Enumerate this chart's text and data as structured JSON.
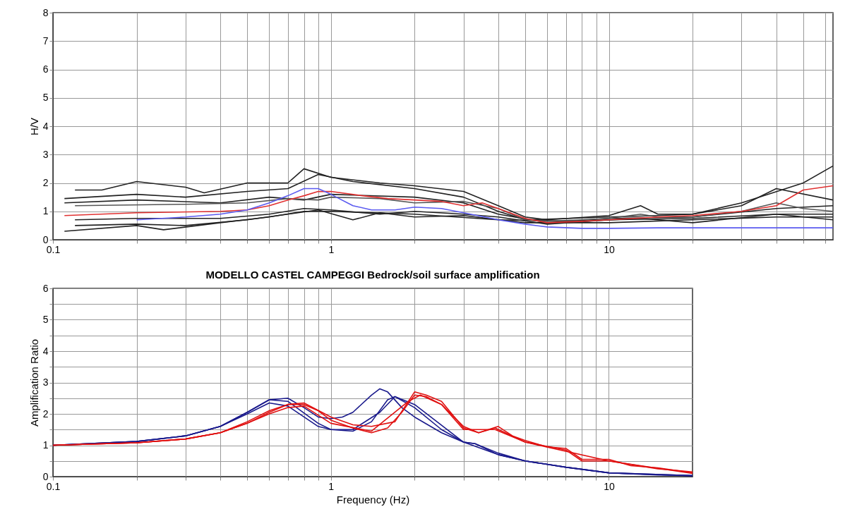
{
  "chart_data": [
    {
      "type": "line",
      "ylabel": "H/V",
      "log": "x",
      "grid": true,
      "xlim": [
        0.1,
        64
      ],
      "ylim": [
        0,
        8
      ],
      "xticks": [
        0.1,
        {
          "value": 0.2,
          "label": null
        },
        {
          "value": 0.3,
          "label": null
        },
        {
          "value": 0.4,
          "label": null
        },
        {
          "value": 0.5,
          "label": null
        },
        {
          "value": 0.6,
          "label": null
        },
        {
          "value": 0.7,
          "label": null
        },
        {
          "value": 0.8,
          "label": null
        },
        {
          "value": 0.9,
          "label": null
        },
        1,
        {
          "value": 2,
          "label": null
        },
        {
          "value": 3,
          "label": null
        },
        {
          "value": 4,
          "label": null
        },
        {
          "value": 5,
          "label": null
        },
        {
          "value": 6,
          "label": null
        },
        {
          "value": 7,
          "label": null
        },
        {
          "value": 8,
          "label": null
        },
        {
          "value": 9,
          "label": null
        },
        10,
        {
          "value": 20,
          "label": null
        },
        {
          "value": 30,
          "label": null
        },
        {
          "value": 40,
          "label": null
        },
        {
          "value": 50,
          "label": null
        },
        {
          "value": 60,
          "label": null
        }
      ],
      "yticks": [
        0,
        1,
        2,
        3,
        4,
        5,
        6,
        7,
        8
      ],
      "series": [
        {
          "color": "#222222",
          "x": [
            0.12,
            0.15,
            0.2,
            0.3,
            0.35,
            0.5,
            0.7,
            0.8,
            1,
            1.5,
            2,
            3,
            4,
            5,
            6,
            10,
            13,
            15,
            20,
            30,
            50,
            64
          ],
          "values": [
            1.75,
            1.75,
            2.05,
            1.85,
            1.65,
            2.0,
            2.0,
            2.5,
            2.2,
            2.0,
            1.9,
            1.7,
            1.2,
            0.8,
            0.7,
            0.85,
            1.2,
            0.9,
            0.9,
            1.3,
            2.0,
            2.6
          ]
        },
        {
          "color": "#222222",
          "x": [
            0.11,
            0.2,
            0.3,
            0.5,
            0.7,
            0.9,
            1.2,
            2,
            3,
            4,
            5,
            10,
            15,
            20,
            30,
            40,
            64
          ],
          "values": [
            1.45,
            1.6,
            1.5,
            1.7,
            1.8,
            2.3,
            2.05,
            1.8,
            1.5,
            1.0,
            0.7,
            0.8,
            0.85,
            0.9,
            1.2,
            1.8,
            1.4
          ]
        },
        {
          "color": "#222222",
          "x": [
            0.11,
            0.2,
            0.4,
            0.6,
            0.8,
            1,
            2,
            3,
            4,
            6,
            10,
            20,
            40,
            64
          ],
          "values": [
            1.3,
            1.4,
            1.3,
            1.5,
            1.4,
            1.6,
            1.5,
            1.3,
            0.9,
            0.6,
            0.75,
            0.8,
            1.1,
            1.2
          ]
        },
        {
          "color": "#222222",
          "x": [
            0.12,
            0.2,
            0.4,
            0.6,
            0.8,
            1,
            1.5,
            2,
            3,
            4,
            6,
            10,
            20,
            40,
            64
          ],
          "values": [
            0.7,
            0.75,
            0.75,
            0.9,
            1.1,
            1.05,
            0.9,
            1.0,
            0.9,
            0.8,
            0.55,
            0.7,
            0.75,
            0.9,
            0.9
          ]
        },
        {
          "color": "#222222",
          "x": [
            0.12,
            0.2,
            0.3,
            0.5,
            0.7,
            0.9,
            1.2,
            1.5,
            2,
            3,
            5,
            10,
            20,
            40,
            64
          ],
          "values": [
            0.5,
            0.55,
            0.5,
            0.7,
            0.9,
            1.05,
            0.7,
            0.95,
            0.8,
            0.85,
            0.6,
            0.6,
            0.7,
            0.8,
            0.8
          ]
        },
        {
          "color": "#222222",
          "x": [
            0.11,
            0.2,
            0.25,
            0.4,
            0.6,
            0.8,
            1,
            2,
            4,
            8,
            13,
            20,
            40,
            64
          ],
          "values": [
            0.3,
            0.5,
            0.35,
            0.6,
            0.8,
            1.0,
            1.0,
            0.9,
            0.7,
            0.65,
            0.75,
            0.6,
            0.9,
            0.7
          ]
        },
        {
          "color": "#555555",
          "x": [
            0.12,
            0.3,
            0.5,
            0.7,
            0.9,
            1.0,
            1.5,
            2,
            3,
            4,
            5,
            6,
            8,
            10,
            13,
            15,
            20,
            30,
            40,
            50,
            64
          ],
          "values": [
            1.2,
            1.25,
            1.3,
            1.45,
            1.4,
            1.5,
            1.45,
            1.3,
            1.35,
            1.1,
            0.7,
            0.65,
            0.7,
            0.75,
            0.9,
            0.8,
            0.8,
            1.0,
            1.3,
            1.1,
            1.0
          ]
        },
        {
          "color": "#e03030",
          "x": [
            0.11,
            0.2,
            0.4,
            0.5,
            0.6,
            0.7,
            0.8,
            0.9,
            1.0,
            1.3,
            1.6,
            2,
            2.5,
            3,
            3.5,
            4,
            5,
            6,
            8,
            10,
            15,
            20,
            30,
            40,
            50,
            64
          ],
          "values": [
            0.85,
            0.95,
            1.0,
            1.05,
            1.2,
            1.4,
            1.55,
            1.7,
            1.7,
            1.55,
            1.45,
            1.4,
            1.35,
            1.2,
            1.3,
            1.1,
            0.75,
            0.6,
            0.65,
            0.7,
            0.8,
            0.85,
            1.0,
            1.2,
            1.75,
            1.9
          ]
        },
        {
          "color": "#5a5af0",
          "x": [
            0.2,
            0.3,
            0.4,
            0.5,
            0.6,
            0.7,
            0.8,
            0.9,
            1.0,
            1.2,
            1.4,
            1.7,
            2,
            2.5,
            3,
            4,
            5,
            6,
            8,
            10,
            15,
            20,
            30,
            64
          ],
          "values": [
            0.7,
            0.8,
            0.9,
            1.05,
            1.3,
            1.55,
            1.8,
            1.8,
            1.6,
            1.2,
            1.05,
            1.05,
            1.15,
            1.1,
            0.95,
            0.7,
            0.55,
            0.45,
            0.4,
            0.4,
            0.42,
            0.42,
            0.42,
            0.42
          ]
        }
      ]
    },
    {
      "type": "line",
      "title": "MODELLO CASTEL CAMPEGGI  Bedrock/soil surface amplification",
      "xlabel": "Frequency (Hz)",
      "ylabel": "Amplification Ratio",
      "log": "x",
      "grid": true,
      "xlim": [
        0.1,
        20
      ],
      "ylim": [
        0,
        6
      ],
      "xticks": [
        0.1,
        {
          "value": 0.2,
          "label": null
        },
        {
          "value": 0.3,
          "label": null
        },
        {
          "value": 0.4,
          "label": null
        },
        {
          "value": 0.5,
          "label": null
        },
        {
          "value": 0.6,
          "label": null
        },
        {
          "value": 0.7,
          "label": null
        },
        {
          "value": 0.8,
          "label": null
        },
        {
          "value": 0.9,
          "label": null
        },
        1,
        {
          "value": 2,
          "label": null
        },
        {
          "value": 3,
          "label": null
        },
        {
          "value": 4,
          "label": null
        },
        {
          "value": 5,
          "label": null
        },
        {
          "value": 6,
          "label": null
        },
        {
          "value": 7,
          "label": null
        },
        {
          "value": 8,
          "label": null
        },
        {
          "value": 9,
          "label": null
        },
        10
      ],
      "yticks": [
        0,
        {
          "value": 0.5,
          "label": null
        },
        1,
        {
          "value": 1.5,
          "label": null
        },
        2,
        {
          "value": 2.5,
          "label": null
        },
        3,
        {
          "value": 3.5,
          "label": null
        },
        4,
        {
          "value": 4.5,
          "label": null
        },
        5,
        {
          "value": 5.5,
          "label": null
        },
        6
      ],
      "series": [
        {
          "color": "#1a1a8c",
          "x": [
            0.1,
            0.2,
            0.3,
            0.4,
            0.5,
            0.6,
            0.7,
            0.8,
            0.9,
            1.0,
            1.1,
            1.2,
            1.4,
            1.5,
            1.6,
            1.8,
            2,
            2.5,
            3,
            3.3,
            4,
            5,
            7,
            10,
            15,
            20
          ],
          "values": [
            1.0,
            1.12,
            1.3,
            1.6,
            2.05,
            2.45,
            2.5,
            2.2,
            1.9,
            1.85,
            1.9,
            2.05,
            2.6,
            2.8,
            2.7,
            2.2,
            1.9,
            1.4,
            1.1,
            1.05,
            0.7,
            0.5,
            0.3,
            0.12,
            0.05,
            0.03
          ]
        },
        {
          "color": "#1a1a8c",
          "x": [
            0.1,
            0.2,
            0.3,
            0.4,
            0.5,
            0.6,
            0.7,
            0.9,
            1.0,
            1.2,
            1.4,
            1.6,
            1.7,
            2,
            2.5,
            3,
            3.3,
            4,
            5,
            7,
            10,
            20
          ],
          "values": [
            1.0,
            1.12,
            1.3,
            1.6,
            2.0,
            2.35,
            2.25,
            1.6,
            1.5,
            1.45,
            1.75,
            2.45,
            2.55,
            2.2,
            1.5,
            1.1,
            1.05,
            0.75,
            0.5,
            0.3,
            0.12,
            0.03
          ]
        },
        {
          "color": "#1a1a8c",
          "x": [
            0.1,
            0.2,
            0.3,
            0.4,
            0.5,
            0.6,
            0.7,
            0.9,
            1.0,
            1.2,
            1.5,
            1.7,
            2,
            3,
            4,
            5,
            7,
            10,
            20
          ],
          "values": [
            1.0,
            1.12,
            1.3,
            1.6,
            2.05,
            2.45,
            2.4,
            1.7,
            1.5,
            1.5,
            2.05,
            2.55,
            2.3,
            1.1,
            0.7,
            0.5,
            0.3,
            0.12,
            0.03
          ]
        },
        {
          "color": "#e01010",
          "x": [
            0.1,
            0.2,
            0.3,
            0.4,
            0.5,
            0.6,
            0.7,
            0.8,
            0.9,
            1,
            1.2,
            1.4,
            1.6,
            1.8,
            2,
            2.2,
            2.5,
            3,
            3.4,
            4,
            4.5,
            5,
            6,
            7,
            8,
            9,
            10,
            12,
            15,
            20
          ],
          "values": [
            1.0,
            1.08,
            1.2,
            1.4,
            1.75,
            2.1,
            2.3,
            2.3,
            2.1,
            1.8,
            1.55,
            1.4,
            1.55,
            2.05,
            2.6,
            2.55,
            2.3,
            1.6,
            1.4,
            1.6,
            1.3,
            1.15,
            0.95,
            0.9,
            0.55,
            0.55,
            0.55,
            0.35,
            0.28,
            0.12
          ]
        },
        {
          "color": "#e01010",
          "x": [
            0.1,
            0.2,
            0.3,
            0.4,
            0.5,
            0.6,
            0.7,
            0.8,
            1,
            1.2,
            1.4,
            1.7,
            2,
            2.2,
            2.5,
            3,
            3.4,
            3.9,
            5,
            7,
            8,
            10,
            15,
            20
          ],
          "values": [
            1.0,
            1.08,
            1.2,
            1.4,
            1.7,
            2.05,
            2.3,
            2.35,
            1.9,
            1.65,
            1.6,
            1.75,
            2.7,
            2.6,
            2.4,
            1.55,
            1.4,
            1.55,
            1.1,
            0.85,
            0.5,
            0.5,
            0.25,
            0.15
          ]
        },
        {
          "color": "#e01010",
          "x": [
            0.1,
            0.2,
            0.3,
            0.4,
            0.5,
            0.6,
            0.7,
            0.8,
            1,
            1.4,
            1.9,
            2.1,
            2.5,
            3,
            3.9,
            5,
            10,
            20
          ],
          "values": [
            1.0,
            1.08,
            1.2,
            1.4,
            1.7,
            2.0,
            2.2,
            2.25,
            1.7,
            1.45,
            2.4,
            2.6,
            2.3,
            1.5,
            1.5,
            1.1,
            0.5,
            0.1
          ]
        }
      ]
    }
  ]
}
